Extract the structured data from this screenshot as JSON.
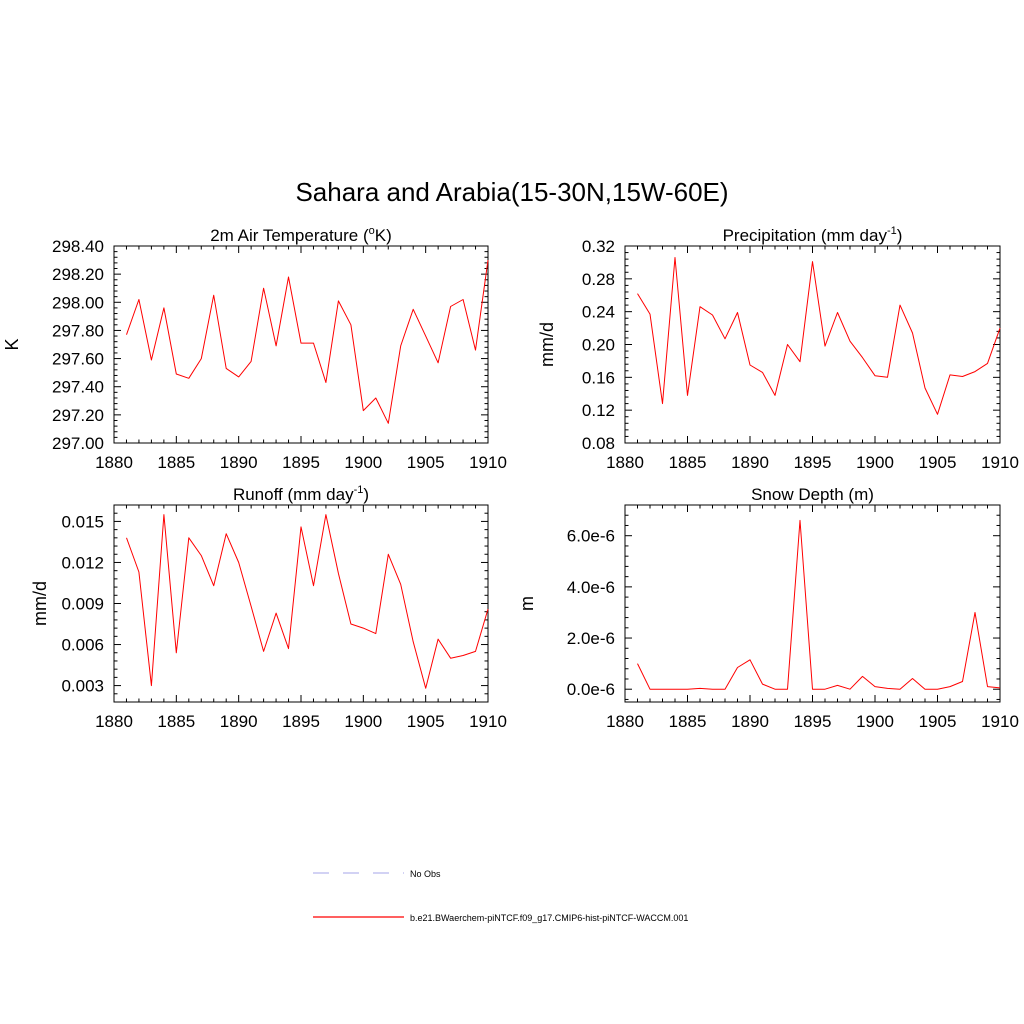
{
  "figure": {
    "title": "Sahara and Arabia(15-30N,15W-60E)"
  },
  "legend": {
    "entries": [
      {
        "label": "No Obs",
        "color": "#b8b8ee",
        "dashed": true
      },
      {
        "label": "b.e21.BWaerchem-piNTCF.f09_g17.CMIP6-hist-piNTCF-WACCM.001",
        "color": "#ff0000",
        "dashed": false
      }
    ]
  },
  "chart_data": [
    {
      "type": "line",
      "title": "2m Air Temperature (",
      "title_sup": "o",
      "title_end": "K)",
      "ylabel": "K",
      "xlim": [
        1880,
        1910
      ],
      "ylim": [
        297.0,
        298.4
      ],
      "x_ticks": [
        1880,
        1885,
        1890,
        1895,
        1900,
        1905,
        1910
      ],
      "y_ticks": [
        "297.00",
        "297.20",
        "297.40",
        "297.60",
        "297.80",
        "298.00",
        "298.20",
        "298.40"
      ],
      "y_tick_values": [
        297.0,
        297.2,
        297.4,
        297.6,
        297.8,
        298.0,
        298.2,
        298.4
      ],
      "series": [
        {
          "color": "#ff0000",
          "x": [
            1881,
            1882,
            1883,
            1884,
            1885,
            1886,
            1887,
            1888,
            1889,
            1890,
            1891,
            1892,
            1893,
            1894,
            1895,
            1896,
            1897,
            1898,
            1899,
            1900,
            1901,
            1902,
            1903,
            1904,
            1905,
            1906,
            1907,
            1908,
            1909,
            1910
          ],
          "values": [
            297.77,
            298.02,
            297.59,
            297.96,
            297.49,
            297.46,
            297.6,
            298.05,
            297.53,
            297.47,
            297.58,
            298.1,
            297.69,
            298.18,
            297.71,
            297.71,
            297.43,
            298.01,
            297.84,
            297.23,
            297.32,
            297.14,
            297.69,
            297.95,
            297.76,
            297.57,
            297.97,
            298.02,
            297.66,
            298.3
          ]
        }
      ]
    },
    {
      "type": "line",
      "title": "Precipitation (mm day",
      "title_sup": "-1",
      "title_end": ")",
      "ylabel": "mm/d",
      "xlim": [
        1880,
        1910
      ],
      "ylim": [
        0.08,
        0.32
      ],
      "x_ticks": [
        1880,
        1885,
        1890,
        1895,
        1900,
        1905,
        1910
      ],
      "y_ticks": [
        "0.08",
        "0.12",
        "0.16",
        "0.20",
        "0.24",
        "0.28",
        "0.32"
      ],
      "y_tick_values": [
        0.08,
        0.12,
        0.16,
        0.2,
        0.24,
        0.28,
        0.32
      ],
      "series": [
        {
          "color": "#ff0000",
          "x": [
            1881,
            1882,
            1883,
            1884,
            1885,
            1886,
            1887,
            1888,
            1889,
            1890,
            1891,
            1892,
            1893,
            1894,
            1895,
            1896,
            1897,
            1898,
            1899,
            1900,
            1901,
            1902,
            1903,
            1904,
            1905,
            1906,
            1907,
            1908,
            1909,
            1910
          ],
          "values": [
            0.262,
            0.237,
            0.128,
            0.306,
            0.138,
            0.246,
            0.236,
            0.207,
            0.239,
            0.175,
            0.166,
            0.138,
            0.2,
            0.179,
            0.301,
            0.198,
            0.239,
            0.204,
            0.184,
            0.162,
            0.16,
            0.248,
            0.214,
            0.147,
            0.115,
            0.163,
            0.161,
            0.167,
            0.177,
            0.22
          ]
        }
      ]
    },
    {
      "type": "line",
      "title": "Runoff (mm day",
      "title_sup": "-1",
      "title_end": ")",
      "ylabel": "mm/d",
      "xlim": [
        1880,
        1910
      ],
      "ylim": [
        0.0018,
        0.0162
      ],
      "x_ticks": [
        1880,
        1885,
        1890,
        1895,
        1900,
        1905,
        1910
      ],
      "y_ticks": [
        "0.003",
        "0.006",
        "0.009",
        "0.012",
        "0.015"
      ],
      "y_tick_values": [
        0.003,
        0.006,
        0.009,
        0.012,
        0.015
      ],
      "series": [
        {
          "color": "#ff0000",
          "x": [
            1881,
            1882,
            1883,
            1884,
            1885,
            1886,
            1887,
            1888,
            1889,
            1890,
            1891,
            1892,
            1893,
            1894,
            1895,
            1896,
            1897,
            1898,
            1899,
            1900,
            1901,
            1902,
            1903,
            1904,
            1905,
            1906,
            1907,
            1908,
            1909,
            1910
          ],
          "values": [
            0.0138,
            0.0113,
            0.003,
            0.0155,
            0.0054,
            0.0138,
            0.0125,
            0.0103,
            0.0141,
            0.012,
            0.0088,
            0.0055,
            0.0083,
            0.0057,
            0.0146,
            0.0103,
            0.0155,
            0.0112,
            0.0075,
            0.0072,
            0.0068,
            0.0126,
            0.0104,
            0.0062,
            0.0028,
            0.0064,
            0.005,
            0.0052,
            0.0055,
            0.0086
          ]
        }
      ]
    },
    {
      "type": "line",
      "title": "Snow Depth (m)",
      "title_sup": "",
      "title_end": "",
      "ylabel": "m",
      "xlim": [
        1880,
        1910
      ],
      "ylim": [
        -5e-07,
        7.2e-06
      ],
      "x_ticks": [
        1880,
        1885,
        1890,
        1895,
        1900,
        1905,
        1910
      ],
      "y_ticks": [
        "0.0e-6",
        "2.0e-6",
        "4.0e-6",
        "6.0e-6"
      ],
      "y_tick_values": [
        0,
        2e-06,
        4e-06,
        6e-06
      ],
      "series": [
        {
          "color": "#ff0000",
          "x": [
            1881,
            1882,
            1883,
            1884,
            1885,
            1886,
            1887,
            1888,
            1889,
            1890,
            1891,
            1892,
            1893,
            1894,
            1895,
            1896,
            1897,
            1898,
            1899,
            1900,
            1901,
            1902,
            1903,
            1904,
            1905,
            1906,
            1907,
            1908,
            1909,
            1910
          ],
          "values": [
            1e-06,
            0.0,
            0.0,
            0.0,
            0.0,
            3e-08,
            0.0,
            0.0,
            8.5e-07,
            1.15e-06,
            2e-07,
            0.0,
            0.0,
            6.6e-06,
            0.0,
            0.0,
            1.5e-07,
            0.0,
            5e-07,
            1e-07,
            3e-08,
            0.0,
            4.2e-07,
            0.0,
            0.0,
            1e-07,
            3e-07,
            3e-06,
            1e-07,
            5e-08
          ]
        }
      ]
    }
  ]
}
